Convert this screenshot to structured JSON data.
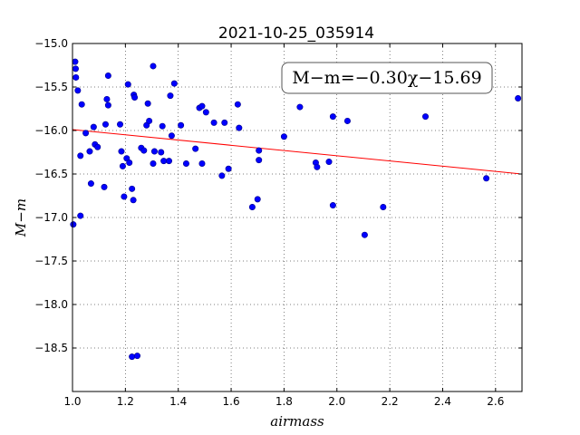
{
  "chart_data": {
    "type": "scatter",
    "title": "2021-10-25_035914",
    "xlabel": "airmass",
    "ylabel": "M−m",
    "xlim": [
      1.0,
      2.7
    ],
    "ylim": [
      -19.0,
      -15.0
    ],
    "y_inverted": true,
    "grid": true,
    "grid_style": "dotted",
    "xticks": [
      1.0,
      1.2,
      1.4,
      1.6,
      1.8,
      2.0,
      2.2,
      2.4,
      2.6
    ],
    "xtick_labels": [
      "1.0",
      "1.2",
      "1.4",
      "1.6",
      "1.8",
      "2.0",
      "2.2",
      "2.4",
      "2.6"
    ],
    "yticks": [
      -15.0,
      -15.5,
      -16.0,
      -16.5,
      -17.0,
      -17.5,
      -18.0,
      -18.5
    ],
    "ytick_labels": [
      "−15.0",
      "−15.5",
      "−16.0",
      "−16.5",
      "−17.0",
      "−17.5",
      "−18.0",
      "−18.5"
    ],
    "annotation": "M−m=−0.30χ−15.69",
    "fit": {
      "slope": -0.3,
      "intercept": -15.69,
      "x_range": [
        1.0,
        2.69
      ]
    },
    "colors": {
      "points": "#0000ff",
      "fit_line": "#ff0000"
    },
    "points": [
      [
        1.003,
        -17.08
      ],
      [
        1.01,
        -15.21
      ],
      [
        1.012,
        -15.29
      ],
      [
        1.013,
        -15.39
      ],
      [
        1.02,
        -15.54
      ],
      [
        1.03,
        -16.29
      ],
      [
        1.03,
        -16.98
      ],
      [
        1.035,
        -15.7
      ],
      [
        1.05,
        -16.03
      ],
      [
        1.065,
        -16.24
      ],
      [
        1.07,
        -16.61
      ],
      [
        1.08,
        -15.96
      ],
      [
        1.085,
        -16.16
      ],
      [
        1.095,
        -16.19
      ],
      [
        1.12,
        -16.65
      ],
      [
        1.125,
        -15.93
      ],
      [
        1.13,
        -15.64
      ],
      [
        1.135,
        -15.37
      ],
      [
        1.135,
        -15.71
      ],
      [
        1.18,
        -15.93
      ],
      [
        1.185,
        -16.24
      ],
      [
        1.19,
        -16.41
      ],
      [
        1.195,
        -16.76
      ],
      [
        1.205,
        -16.32
      ],
      [
        1.21,
        -15.47
      ],
      [
        1.215,
        -16.37
      ],
      [
        1.225,
        -16.67
      ],
      [
        1.225,
        -18.6
      ],
      [
        1.23,
        -16.8
      ],
      [
        1.232,
        -15.59
      ],
      [
        1.235,
        -15.62
      ],
      [
        1.245,
        -18.59
      ],
      [
        1.26,
        -16.2
      ],
      [
        1.27,
        -16.23
      ],
      [
        1.28,
        -15.94
      ],
      [
        1.285,
        -15.69
      ],
      [
        1.29,
        -15.89
      ],
      [
        1.305,
        -15.26
      ],
      [
        1.305,
        -16.38
      ],
      [
        1.31,
        -16.24
      ],
      [
        1.335,
        -16.25
      ],
      [
        1.34,
        -15.95
      ],
      [
        1.345,
        -16.35
      ],
      [
        1.365,
        -16.35
      ],
      [
        1.37,
        -15.6
      ],
      [
        1.375,
        -16.06
      ],
      [
        1.385,
        -15.46
      ],
      [
        1.41,
        -15.94
      ],
      [
        1.43,
        -16.38
      ],
      [
        1.465,
        -16.21
      ],
      [
        1.48,
        -15.74
      ],
      [
        1.49,
        -15.72
      ],
      [
        1.49,
        -16.38
      ],
      [
        1.505,
        -15.79
      ],
      [
        1.535,
        -15.91
      ],
      [
        1.565,
        -16.52
      ],
      [
        1.575,
        -15.91
      ],
      [
        1.59,
        -16.44
      ],
      [
        1.625,
        -15.7
      ],
      [
        1.63,
        -15.97
      ],
      [
        1.68,
        -16.88
      ],
      [
        1.7,
        -16.79
      ],
      [
        1.705,
        -16.23
      ],
      [
        1.705,
        -16.34
      ],
      [
        1.8,
        -16.07
      ],
      [
        1.86,
        -15.73
      ],
      [
        1.92,
        -16.37
      ],
      [
        1.925,
        -16.42
      ],
      [
        1.97,
        -16.36
      ],
      [
        1.985,
        -15.84
      ],
      [
        1.985,
        -16.86
      ],
      [
        2.04,
        -15.89
      ],
      [
        2.105,
        -17.2
      ],
      [
        2.175,
        -16.88
      ],
      [
        2.335,
        -15.84
      ],
      [
        2.565,
        -16.55
      ],
      [
        2.685,
        -15.63
      ]
    ]
  }
}
